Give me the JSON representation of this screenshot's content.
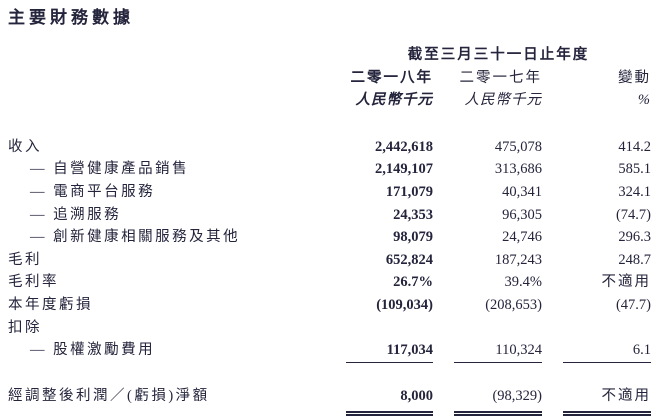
{
  "page": {
    "title": "主要財務數據"
  },
  "table": {
    "period_header": "截至三月三十一日止年度",
    "columns": {
      "y2018": {
        "year": "二零一八年",
        "unit": "人民幣千元"
      },
      "y2017": {
        "year": "二零一七年",
        "unit": "人民幣千元"
      },
      "change": {
        "year": "變動",
        "unit": "%"
      }
    },
    "rows": [
      {
        "label": "收入",
        "v2018": "2,442,618",
        "v2017": "475,078",
        "change": "414.2"
      },
      {
        "label": "— 自營健康產品銷售",
        "v2018": "2,149,107",
        "v2017": "313,686",
        "change": "585.1"
      },
      {
        "label": "— 電商平台服務",
        "v2018": "171,079",
        "v2017": "40,341",
        "change": "324.1"
      },
      {
        "label": "— 追溯服務",
        "v2018": "24,353",
        "v2017": "96,305",
        "change": "(74.7)"
      },
      {
        "label": "— 創新健康相關服務及其他",
        "v2018": "98,079",
        "v2017": "24,746",
        "change": "296.3"
      },
      {
        "label": "毛利",
        "v2018": "652,824",
        "v2017": "187,243",
        "change": "248.7"
      },
      {
        "label": "毛利率",
        "v2018": "26.7%",
        "v2017": "39.4%",
        "change": "不適用"
      },
      {
        "label": "本年度虧損",
        "v2018": "(109,034)",
        "v2017": "(208,653)",
        "change": "(47.7)"
      },
      {
        "label": "扣除",
        "v2018": "",
        "v2017": "",
        "change": ""
      },
      {
        "label": "— 股權激勵費用",
        "v2018": "117,034",
        "v2017": "110,324",
        "change": "6.1"
      },
      {
        "label": "經調整後利潤／(虧損)淨額",
        "v2018": "8,000",
        "v2017": "(98,329)",
        "change": "不適用"
      }
    ]
  },
  "colors": {
    "text": "#24243c",
    "background": "#ffffff"
  }
}
